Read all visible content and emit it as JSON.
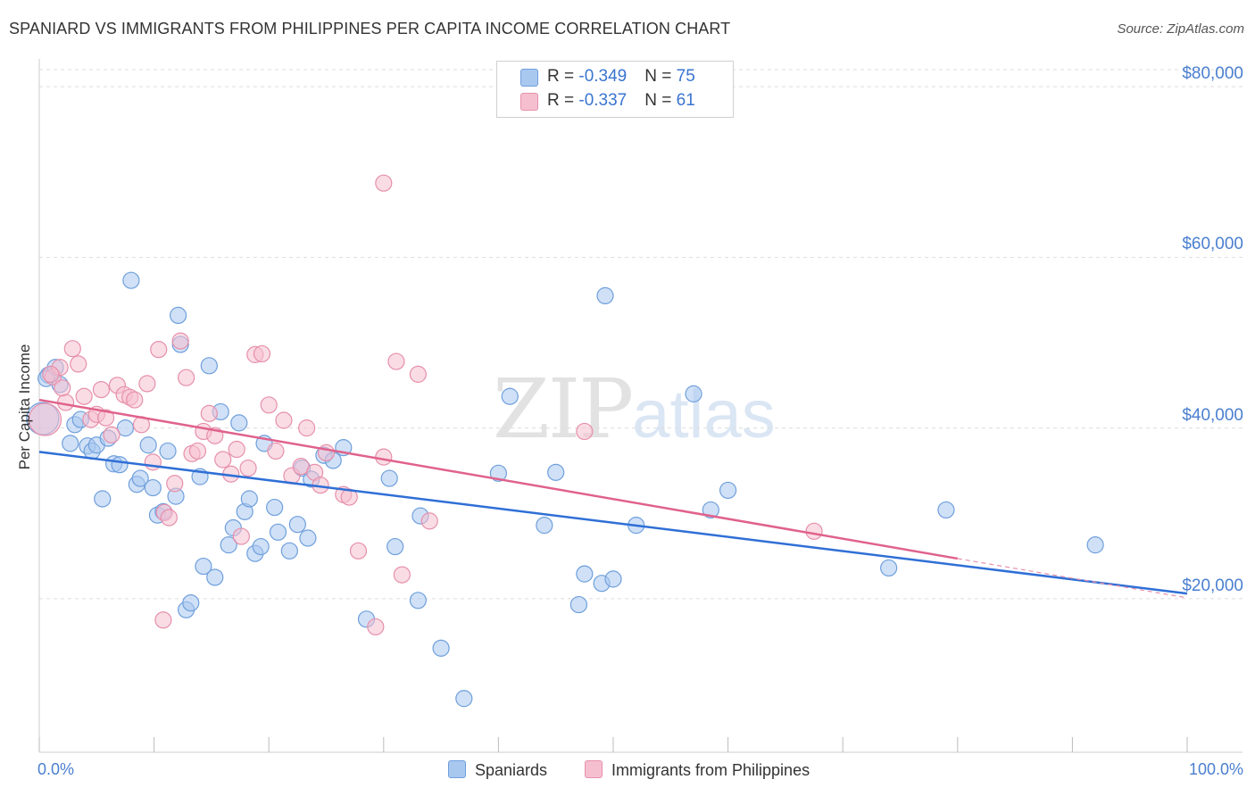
{
  "title": "SPANIARD VS IMMIGRANTS FROM PHILIPPINES PER CAPITA INCOME CORRELATION CHART",
  "source": "Source: ZipAtlas.com",
  "watermark": {
    "zip": "ZIP",
    "atlas": "atlas"
  },
  "legend": {
    "rows": [
      {
        "r_label": "R = ",
        "r_value": "-0.349",
        "n_label": "N = ",
        "n_value": "75",
        "color": "#a9c8f0"
      },
      {
        "r_label": "R = ",
        "r_value": "-0.337",
        "n_label": "N = ",
        "n_value": "61",
        "color": "#f6bfd0"
      }
    ]
  },
  "bottom_legend": [
    {
      "label": "Spaniards",
      "color": "#a9c8f0"
    },
    {
      "label": "Immigrants from Philippines",
      "color": "#f6bfd0"
    }
  ],
  "colors": {
    "blue_fill": "#a9c8f0",
    "blue_stroke": "#6f9fdc",
    "blue_line": "#2f6fd6",
    "pink_fill": "#f6bfd0",
    "pink_stroke": "#e690ab",
    "pink_line": "#e0628c",
    "grid": "#dddddd",
    "axis_text": "#4a7fd0"
  },
  "chart_data": {
    "type": "scatter",
    "title": "SPANIARD VS IMMIGRANTS FROM PHILIPPINES PER CAPITA INCOME CORRELATION CHART",
    "xlabel": "",
    "ylabel": "Per Capita Income",
    "xlim": [
      0,
      100
    ],
    "ylim": [
      2000,
      82000
    ],
    "x_tick_labels": [
      "0.0%",
      "100.0%"
    ],
    "y_ticks": [
      20000,
      40000,
      60000,
      80000
    ],
    "y_tick_labels": [
      "$20,000",
      "$40,000",
      "$60,000",
      "$80,000"
    ],
    "grid": true,
    "legend_position": "top-center",
    "series": [
      {
        "name": "Spaniards",
        "r": -0.349,
        "n": 75,
        "trend": {
          "x": [
            0,
            100
          ],
          "y": [
            37200,
            20600
          ]
        },
        "points": [
          [
            0.8,
            46200
          ],
          [
            1.4,
            47100
          ],
          [
            1.8,
            45100
          ],
          [
            0.3,
            41100
          ],
          [
            2.7,
            38200
          ],
          [
            3.1,
            40400
          ],
          [
            3.6,
            41000
          ],
          [
            4.2,
            37900
          ],
          [
            4.6,
            37300
          ],
          [
            5.0,
            38000
          ],
          [
            5.5,
            31700
          ],
          [
            6.0,
            38800
          ],
          [
            6.5,
            35800
          ],
          [
            7.0,
            35700
          ],
          [
            7.5,
            40000
          ],
          [
            8.0,
            57300
          ],
          [
            8.5,
            33400
          ],
          [
            8.8,
            34100
          ],
          [
            9.5,
            38000
          ],
          [
            9.9,
            33000
          ],
          [
            10.3,
            29800
          ],
          [
            10.8,
            30200
          ],
          [
            11.2,
            37300
          ],
          [
            11.9,
            32000
          ],
          [
            12.1,
            53200
          ],
          [
            12.3,
            49800
          ],
          [
            12.8,
            18700
          ],
          [
            13.2,
            19500
          ],
          [
            14.0,
            34300
          ],
          [
            14.3,
            23800
          ],
          [
            14.8,
            47300
          ],
          [
            15.3,
            22500
          ],
          [
            15.8,
            41900
          ],
          [
            16.5,
            26300
          ],
          [
            16.9,
            28300
          ],
          [
            17.4,
            40600
          ],
          [
            17.9,
            30200
          ],
          [
            18.3,
            31700
          ],
          [
            18.8,
            25300
          ],
          [
            19.3,
            26100
          ],
          [
            19.6,
            38200
          ],
          [
            20.5,
            30700
          ],
          [
            20.8,
            27800
          ],
          [
            21.8,
            25600
          ],
          [
            22.5,
            28700
          ],
          [
            22.9,
            35300
          ],
          [
            23.4,
            27100
          ],
          [
            23.7,
            34000
          ],
          [
            24.8,
            36800
          ],
          [
            25.6,
            36200
          ],
          [
            26.5,
            37700
          ],
          [
            28.5,
            17600
          ],
          [
            30.5,
            34100
          ],
          [
            31.0,
            26100
          ],
          [
            33.0,
            19800
          ],
          [
            33.2,
            29700
          ],
          [
            35.0,
            14200
          ],
          [
            37.0,
            8300
          ],
          [
            40.0,
            34700
          ],
          [
            41.0,
            43700
          ],
          [
            44.0,
            28600
          ],
          [
            45.0,
            34800
          ],
          [
            47.0,
            19300
          ],
          [
            47.5,
            22900
          ],
          [
            49.0,
            21800
          ],
          [
            49.3,
            55500
          ],
          [
            50.0,
            22300
          ],
          [
            52.0,
            28600
          ],
          [
            57.0,
            44000
          ],
          [
            58.5,
            30400
          ],
          [
            60.0,
            32700
          ],
          [
            74.0,
            23600
          ],
          [
            79.0,
            30400
          ],
          [
            92.0,
            26300
          ],
          [
            0.6,
            45800
          ]
        ]
      },
      {
        "name": "Immigrants from Philippines",
        "r": -0.337,
        "n": 61,
        "trend": {
          "x": [
            0,
            80
          ],
          "y": [
            43300,
            24700
          ]
        },
        "trend_extension": {
          "x": [
            80,
            100
          ],
          "y": [
            24700,
            20100
          ]
        },
        "points": [
          [
            0.5,
            41000
          ],
          [
            1.2,
            46000
          ],
          [
            1.8,
            47100
          ],
          [
            2.3,
            43000
          ],
          [
            2.9,
            49300
          ],
          [
            3.4,
            47500
          ],
          [
            3.9,
            43700
          ],
          [
            4.5,
            41000
          ],
          [
            5.0,
            41600
          ],
          [
            5.4,
            44500
          ],
          [
            5.8,
            41200
          ],
          [
            6.3,
            39200
          ],
          [
            6.8,
            45000
          ],
          [
            7.4,
            43900
          ],
          [
            7.9,
            43600
          ],
          [
            8.3,
            43300
          ],
          [
            8.9,
            40400
          ],
          [
            9.4,
            45200
          ],
          [
            9.9,
            36000
          ],
          [
            10.4,
            49200
          ],
          [
            10.9,
            30100
          ],
          [
            11.3,
            29500
          ],
          [
            11.8,
            33500
          ],
          [
            12.3,
            50200
          ],
          [
            12.8,
            45900
          ],
          [
            13.3,
            37000
          ],
          [
            13.8,
            37300
          ],
          [
            14.3,
            39600
          ],
          [
            14.8,
            41700
          ],
          [
            15.3,
            39100
          ],
          [
            16.0,
            36300
          ],
          [
            16.7,
            34600
          ],
          [
            17.2,
            37500
          ],
          [
            17.6,
            27300
          ],
          [
            18.2,
            35300
          ],
          [
            18.8,
            48600
          ],
          [
            19.4,
            48700
          ],
          [
            20.0,
            42700
          ],
          [
            20.6,
            37300
          ],
          [
            21.3,
            40900
          ],
          [
            22.0,
            34400
          ],
          [
            22.8,
            35500
          ],
          [
            23.3,
            40000
          ],
          [
            24.0,
            34800
          ],
          [
            24.5,
            33300
          ],
          [
            25.0,
            37100
          ],
          [
            26.5,
            32200
          ],
          [
            27.0,
            31900
          ],
          [
            27.8,
            25600
          ],
          [
            29.3,
            16700
          ],
          [
            30.0,
            36600
          ],
          [
            31.1,
            47800
          ],
          [
            31.6,
            22800
          ],
          [
            33.0,
            46300
          ],
          [
            34.0,
            29100
          ],
          [
            30.0,
            68700
          ],
          [
            47.5,
            39600
          ],
          [
            67.5,
            27900
          ],
          [
            10.8,
            17500
          ],
          [
            1.0,
            46300
          ],
          [
            2.0,
            44700
          ]
        ]
      }
    ]
  }
}
